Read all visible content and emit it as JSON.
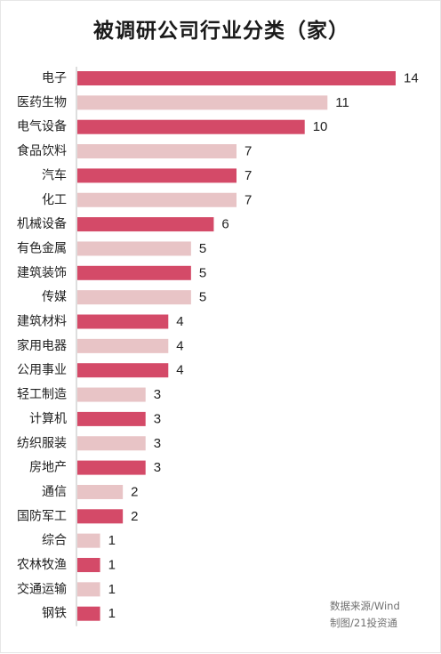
{
  "chart_data": {
    "type": "bar",
    "orientation": "horizontal",
    "title": "被调研公司行业分类（家）",
    "categories": [
      "电子",
      "医药生物",
      "电气设备",
      "食品饮料",
      "汽车",
      "化工",
      "机械设备",
      "有色金属",
      "建筑装饰",
      "传媒",
      "建筑材料",
      "家用电器",
      "公用事业",
      "轻工制造",
      "计算机",
      "纺织服装",
      "房地产",
      "通信",
      "国防军工",
      "综合",
      "农林牧渔",
      "交通运输",
      "钢铁"
    ],
    "values": [
      14,
      11,
      10,
      7,
      7,
      7,
      6,
      5,
      5,
      5,
      4,
      4,
      4,
      3,
      3,
      3,
      3,
      2,
      2,
      1,
      1,
      1,
      1
    ],
    "xlim": [
      0,
      14
    ],
    "grid": false,
    "legend": "none",
    "colors": {
      "strong": "#d44a68",
      "light": "#e8c4c6",
      "axis": "#bdbdbd",
      "label": "#222222"
    },
    "source_line1": "数据来源/Wind",
    "source_line2": "制图/21投资通"
  }
}
